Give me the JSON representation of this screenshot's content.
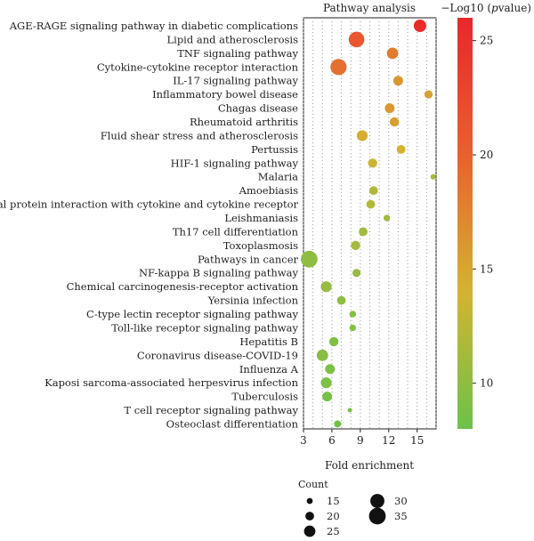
{
  "chart_data": {
    "type": "scatter",
    "title": "Pathway analysis",
    "xlabel": "Fold enrichment",
    "ylabel": "",
    "xlim": [
      3,
      17
    ],
    "xticks": [
      3,
      6,
      9,
      12,
      15
    ],
    "legend_size_title": "Count",
    "size_legend": [
      15,
      20,
      25,
      30,
      35
    ],
    "colorbar_title_prefix": "−Log10 (",
    "colorbar_title_italic": "p",
    "colorbar_title_suffix": "value)",
    "colorbar_range": [
      8,
      26
    ],
    "colorbar_ticks": [
      10,
      15,
      20,
      25
    ],
    "colorbar_colors": [
      "#6cc24a",
      "#d4b331",
      "#e8612e",
      "#e8272c"
    ],
    "pathways": [
      {
        "name": "AGE-RAGE signaling pathway in diabetic complications",
        "fold": 15.3,
        "count": 27,
        "log10p": 25.5
      },
      {
        "name": "Lipid and atherosclerosis",
        "fold": 8.6,
        "count": 33,
        "log10p": 21.0
      },
      {
        "name": "TNF signaling pathway",
        "fold": 12.4,
        "count": 25,
        "log10p": 18.0
      },
      {
        "name": "Cytokine-cytokine receptor interaction",
        "fold": 6.7,
        "count": 34,
        "log10p": 19.0
      },
      {
        "name": "IL-17 signaling pathway",
        "fold": 13.0,
        "count": 22,
        "log10p": 16.0
      },
      {
        "name": "Inflammatory bowel disease",
        "fold": 16.2,
        "count": 19,
        "log10p": 15.5
      },
      {
        "name": "Chagas disease",
        "fold": 12.1,
        "count": 22,
        "log10p": 16.0
      },
      {
        "name": "Rheumatoid arthritis",
        "fold": 12.6,
        "count": 21,
        "log10p": 15.5
      },
      {
        "name": "Fluid shear stress and atherosclerosis",
        "fold": 9.2,
        "count": 24,
        "log10p": 14.5
      },
      {
        "name": "Pertussis",
        "fold": 13.3,
        "count": 20,
        "log10p": 14.0
      },
      {
        "name": "HIF-1 signaling pathway",
        "fold": 10.3,
        "count": 21,
        "log10p": 13.5
      },
      {
        "name": "Malaria",
        "fold": 16.7,
        "count": 14,
        "log10p": 11.5
      },
      {
        "name": "Amoebiasis",
        "fold": 10.4,
        "count": 20,
        "log10p": 12.0
      },
      {
        "name": "Viral protein interaction with cytokine and cytokine receptor",
        "fold": 10.1,
        "count": 20,
        "log10p": 12.0
      },
      {
        "name": "Leishmaniasis",
        "fold": 11.8,
        "count": 16,
        "log10p": 11.0
      },
      {
        "name": "Th17 cell differentiation",
        "fold": 9.3,
        "count": 20,
        "log10p": 11.0
      },
      {
        "name": "Toxoplasmosis",
        "fold": 8.5,
        "count": 21,
        "log10p": 11.0
      },
      {
        "name": "Pathways in cancer",
        "fold": 3.6,
        "count": 35,
        "log10p": 10.0
      },
      {
        "name": "NF-kappa B signaling pathway",
        "fold": 8.6,
        "count": 19,
        "log10p": 10.5
      },
      {
        "name": "Chemical carcinogenesis-receptor activation",
        "fold": 5.4,
        "count": 24,
        "log10p": 10.5
      },
      {
        "name": "Yersinia infection",
        "fold": 7.0,
        "count": 20,
        "log10p": 10.0
      },
      {
        "name": "C-type lectin receptor signaling pathway",
        "fold": 8.2,
        "count": 16,
        "log10p": 9.5
      },
      {
        "name": "Toll-like receptor signaling pathway",
        "fold": 8.2,
        "count": 16,
        "log10p": 9.5
      },
      {
        "name": "Hepatitis B",
        "fold": 6.2,
        "count": 21,
        "log10p": 9.0
      },
      {
        "name": "Coronavirus disease-COVID-19",
        "fold": 5.0,
        "count": 25,
        "log10p": 9.5
      },
      {
        "name": "Influenza A",
        "fold": 5.8,
        "count": 22,
        "log10p": 9.0
      },
      {
        "name": "Kaposi sarcoma-associated herpesvirus infection",
        "fold": 5.4,
        "count": 24,
        "log10p": 9.0
      },
      {
        "name": "Tuberculosis",
        "fold": 5.5,
        "count": 22,
        "log10p": 8.5
      },
      {
        "name": "T cell receptor signaling pathway",
        "fold": 7.9,
        "count": 12,
        "log10p": 8.5
      },
      {
        "name": "Osteoclast differentiation",
        "fold": 6.6,
        "count": 17,
        "log10p": 8.5
      }
    ]
  }
}
